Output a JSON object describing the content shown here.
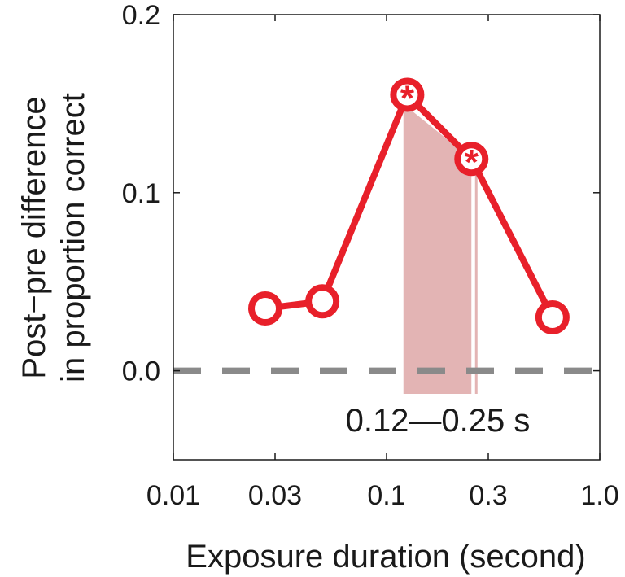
{
  "chart_data": {
    "type": "line",
    "xlabel": "Exposure duration (second)",
    "ylabel_lines": [
      "Post−pre difference",
      "in proportion correct"
    ],
    "x_scale": "log",
    "xlim": [
      0.01,
      1.0
    ],
    "ylim": [
      -0.05,
      0.2
    ],
    "x_ticks": [
      0.01,
      0.03,
      0.1,
      0.3,
      1.0
    ],
    "x_tick_labels": [
      "0.01",
      "0.03",
      "0.1",
      "0.3",
      "1.0"
    ],
    "y_ticks": [
      0.0,
      0.1,
      0.2
    ],
    "y_tick_labels": [
      "0.0",
      "0.1",
      "0.2"
    ],
    "reference_line": {
      "y": 0.0,
      "style": "dashed",
      "color": "#8a8a8a"
    },
    "series": [
      {
        "color": "#e8202a",
        "x": [
          0.027,
          0.05,
          0.125,
          0.25,
          0.6
        ],
        "y": [
          0.035,
          0.039,
          0.155,
          0.119,
          0.03
        ],
        "significant": [
          false,
          false,
          true,
          true,
          false
        ]
      }
    ],
    "shaded_region": {
      "x_start": 0.12,
      "x_end": 0.25,
      "y_bottom": -0.013,
      "color": "#e3b4b4",
      "label": "0.12—0.25 s",
      "label_color": "#ef9bb3"
    },
    "significance_marker": "*"
  }
}
